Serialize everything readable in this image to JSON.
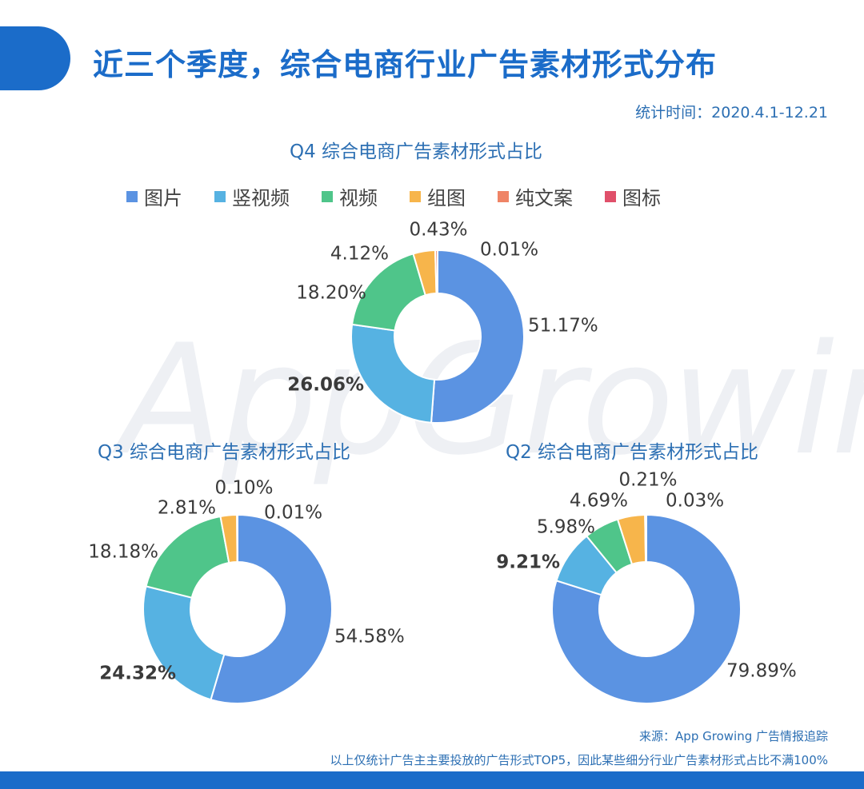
{
  "header": {
    "title": "近三个季度，综合电商行业广告素材形式分布",
    "stat_time": "统计时间：2020.4.1-12.21"
  },
  "watermark": "AppGrowing",
  "legend": [
    {
      "label": "图片",
      "color": "#5b93e2"
    },
    {
      "label": "竖视频",
      "color": "#56b2e2"
    },
    {
      "label": "视频",
      "color": "#4fc58a"
    },
    {
      "label": "组图",
      "color": "#f7b54b"
    },
    {
      "label": "纯文案",
      "color": "#ef8466"
    },
    {
      "label": "图标",
      "color": "#e0506a"
    }
  ],
  "footer": {
    "source": "来源：App Growing 广告情报追踪",
    "note": "以上仅统计广告主主要投放的广告形式TOP5，因此某些细分行业广告素材形式占比不满100%"
  },
  "chart_data": [
    {
      "type": "pie",
      "title": "Q4 综合电商广告素材形式占比",
      "categories": [
        "图片",
        "竖视频",
        "视频",
        "组图",
        "纯文案",
        "图标"
      ],
      "values": [
        51.17,
        26.06,
        18.2,
        4.12,
        0.43,
        0.01
      ],
      "labels": [
        "51.17%",
        "26.06%",
        "18.20%",
        "4.12%",
        "0.43%",
        "0.01%"
      ],
      "hole": 0.5
    },
    {
      "type": "pie",
      "title": "Q3 综合电商广告素材形式占比",
      "categories": [
        "图片",
        "竖视频",
        "视频",
        "组图",
        "纯文案",
        "图标"
      ],
      "values": [
        54.58,
        24.32,
        18.18,
        2.81,
        0.1,
        0.01
      ],
      "labels": [
        "54.58%",
        "24.32%",
        "18.18%",
        "2.81%",
        "0.10%",
        "0.01%"
      ],
      "hole": 0.5
    },
    {
      "type": "pie",
      "title": "Q2 综合电商广告素材形式占比",
      "categories": [
        "图片",
        "竖视频",
        "视频",
        "组图",
        "纯文案",
        "图标"
      ],
      "values": [
        79.89,
        9.21,
        5.98,
        4.69,
        0.21,
        0.03
      ],
      "labels": [
        "79.89%",
        "9.21%",
        "5.98%",
        "4.69%",
        "0.21%",
        "0.03%"
      ],
      "hole": 0.5
    }
  ]
}
